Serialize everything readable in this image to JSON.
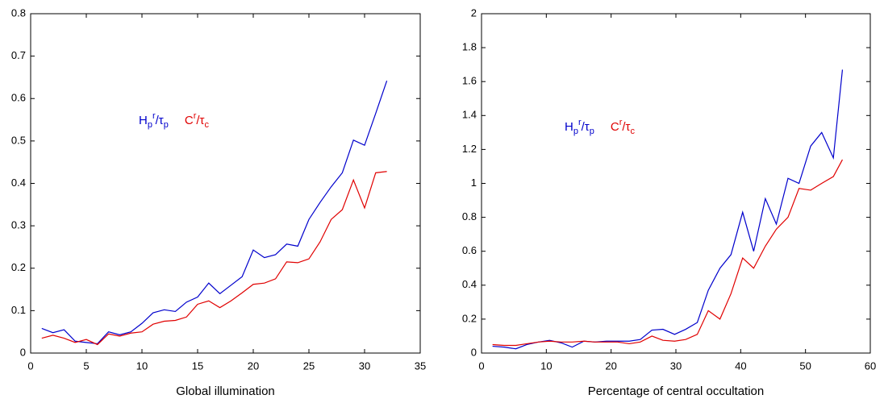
{
  "chart_data": [
    {
      "type": "line",
      "xlabel": "Global illumination",
      "x": [
        1,
        2,
        3,
        4,
        5,
        6,
        7,
        8,
        9,
        10,
        11,
        12,
        13,
        14,
        15,
        16,
        17,
        18,
        19,
        20,
        21,
        22,
        23,
        24,
        25,
        26,
        27,
        28,
        29,
        30,
        31,
        32
      ],
      "series": [
        {
          "name": [
            {
              "text": "H"
            },
            {
              "text": "p",
              "pos": "sub"
            },
            {
              "text": "r",
              "pos": "sup"
            },
            {
              "text": "/τ"
            },
            {
              "text": "p",
              "pos": "sub"
            }
          ],
          "color": "#0000cc",
          "values": [
            0.058,
            0.048,
            0.055,
            0.028,
            0.025,
            0.022,
            0.05,
            0.043,
            0.05,
            0.07,
            0.095,
            0.102,
            0.098,
            0.12,
            0.132,
            0.165,
            0.14,
            0.16,
            0.18,
            0.243,
            0.225,
            0.232,
            0.257,
            0.252,
            0.315,
            0.355,
            0.392,
            0.425,
            0.502,
            0.49,
            0.565,
            0.642
          ]
        },
        {
          "name": [
            {
              "text": "C"
            },
            {
              "text": "r",
              "pos": "sup"
            },
            {
              "text": "/τ"
            },
            {
              "text": "c",
              "pos": "sub"
            }
          ],
          "color": "#e00000",
          "values": [
            0.035,
            0.042,
            0.035,
            0.025,
            0.032,
            0.02,
            0.045,
            0.04,
            0.047,
            0.05,
            0.068,
            0.075,
            0.077,
            0.085,
            0.115,
            0.123,
            0.107,
            0.123,
            0.142,
            0.162,
            0.165,
            0.175,
            0.215,
            0.213,
            0.222,
            0.262,
            0.315,
            0.338,
            0.408,
            0.342,
            0.425,
            0.428
          ]
        }
      ],
      "xlim": [
        0,
        35
      ],
      "xticks": [
        0,
        5,
        10,
        15,
        20,
        25,
        30,
        35
      ],
      "ylim": [
        0,
        0.8
      ],
      "yticks": [
        0,
        0.1,
        0.2,
        0.3,
        0.4,
        0.5,
        0.6,
        0.7,
        0.8
      ],
      "grid": false
    },
    {
      "type": "line",
      "xlabel": "Percentage of central occultation",
      "x": [
        1.7,
        3.5,
        5.3,
        7,
        8.8,
        10.5,
        12.3,
        14,
        15.8,
        17.5,
        19.3,
        21,
        22.8,
        24.5,
        26.3,
        28,
        29.8,
        31.5,
        33.3,
        35,
        36.8,
        38.5,
        40.3,
        42,
        43.8,
        45.5,
        47.3,
        49,
        50.8,
        52.5,
        54.3,
        55.7
      ],
      "series": [
        {
          "name": [
            {
              "text": "H"
            },
            {
              "text": "p",
              "pos": "sub"
            },
            {
              "text": "r",
              "pos": "sup"
            },
            {
              "text": "/τ"
            },
            {
              "text": "p",
              "pos": "sub"
            }
          ],
          "color": "#0000cc",
          "values": [
            0.04,
            0.035,
            0.025,
            0.05,
            0.065,
            0.075,
            0.06,
            0.035,
            0.07,
            0.065,
            0.07,
            0.07,
            0.07,
            0.08,
            0.135,
            0.14,
            0.11,
            0.14,
            0.18,
            0.37,
            0.5,
            0.58,
            0.83,
            0.6,
            0.91,
            0.76,
            1.03,
            1.0,
            1.22,
            1.3,
            1.15,
            1.67
          ]
        },
        {
          "name": [
            {
              "text": "C"
            },
            {
              "text": "r",
              "pos": "sup"
            },
            {
              "text": "/τ"
            },
            {
              "text": "c",
              "pos": "sub"
            }
          ],
          "color": "#e00000",
          "values": [
            0.05,
            0.045,
            0.045,
            0.055,
            0.065,
            0.07,
            0.065,
            0.065,
            0.07,
            0.065,
            0.065,
            0.065,
            0.055,
            0.065,
            0.1,
            0.075,
            0.07,
            0.08,
            0.11,
            0.25,
            0.2,
            0.35,
            0.56,
            0.5,
            0.63,
            0.73,
            0.8,
            0.97,
            0.96,
            1.0,
            1.04,
            1.14
          ]
        }
      ],
      "xlim": [
        0,
        60
      ],
      "xticks": [
        0,
        10,
        20,
        30,
        40,
        50,
        60
      ],
      "ylim": [
        0,
        2
      ],
      "yticks": [
        0,
        0.2,
        0.4,
        0.6,
        0.8,
        1,
        1.2,
        1.4,
        1.6,
        1.8,
        2
      ],
      "grid": false
    }
  ]
}
